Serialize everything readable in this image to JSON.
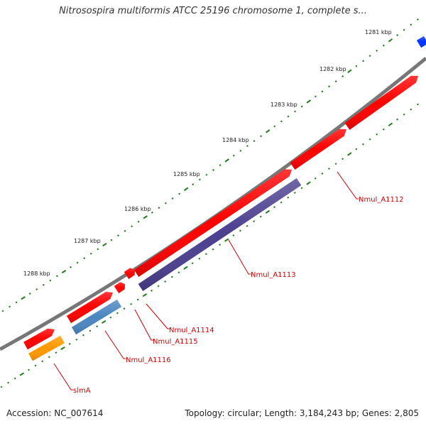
{
  "title": "Nitrosospira multiformis ATCC 25196 chromosome 1, complete s...",
  "footer": {
    "accession": "Accession: NC_007614",
    "summary": "Topology: circular; Length: 3,184,243 bp; Genes: 2,805"
  },
  "colors": {
    "backbone": "#777777",
    "tick": "#1e7a1e",
    "label": "#d40000",
    "leader": "#d40000"
  },
  "kbp_labels": [
    "1281 kbp",
    "1282 kbp",
    "1283 kbp",
    "1284 kbp",
    "1285 kbp",
    "1286 kbp",
    "1287 kbp",
    "1288 kbp"
  ],
  "genes": [
    {
      "label": "Nmul_A1112",
      "color": "#ff0000"
    },
    {
      "label": "Nmul_A1113",
      "color": "#4b3f8f"
    },
    {
      "label": "Nmul_A1114",
      "color": "#ff0000"
    },
    {
      "label": "Nmul_A1115",
      "color": "#ff0000"
    },
    {
      "label": "Nmul_A1116",
      "color": "#4a86c0"
    },
    {
      "label": "slmA",
      "color": "#ff9900"
    }
  ],
  "unlabeled_features": [
    {
      "color": "#ff0000"
    },
    {
      "color": "#ff0000"
    },
    {
      "color": "#0033ff"
    }
  ]
}
